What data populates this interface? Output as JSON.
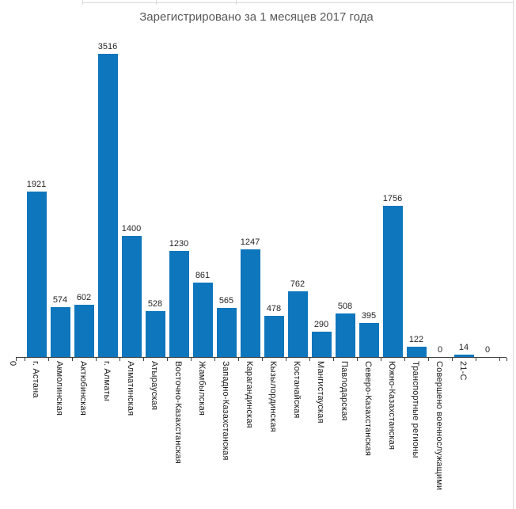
{
  "title": "Зарегистрировано за 1 месяцев 2017 года",
  "origin_label": "0",
  "colors": {
    "bar": "#0d76bc",
    "title": "#595959",
    "label": "#262626",
    "axis": "#404040",
    "frame": "#d9d9d9"
  },
  "chart_data": {
    "type": "bar",
    "title": "Зарегистрировано за 1 месяцев 2017 года",
    "categories": [
      "г. Астана",
      "Акмолинская",
      "Актюбинская",
      "г. Алматы",
      "Алматинская",
      "Атырауская",
      "Восточно-Казахстанская",
      "Жамбылская",
      "Западно-Казахстанская",
      "Карагандинская",
      "Кызылординская",
      "Костанайская",
      "Мангистауская",
      "Павлодарская",
      "Северо-Казахстанская",
      "Южно-Казахстанская",
      "Транспортные регионы",
      "Совершено военнослужащими",
      "21-С",
      ""
    ],
    "values": [
      1921,
      574,
      602,
      3516,
      1400,
      528,
      1230,
      861,
      565,
      1247,
      478,
      762,
      290,
      508,
      395,
      1756,
      122,
      0,
      14,
      0
    ],
    "xlabel": "",
    "ylabel": "",
    "ylim": [
      0,
      3700
    ],
    "grid": false,
    "legend": false,
    "value_labels": true,
    "category_label_rotation": "vertical"
  }
}
